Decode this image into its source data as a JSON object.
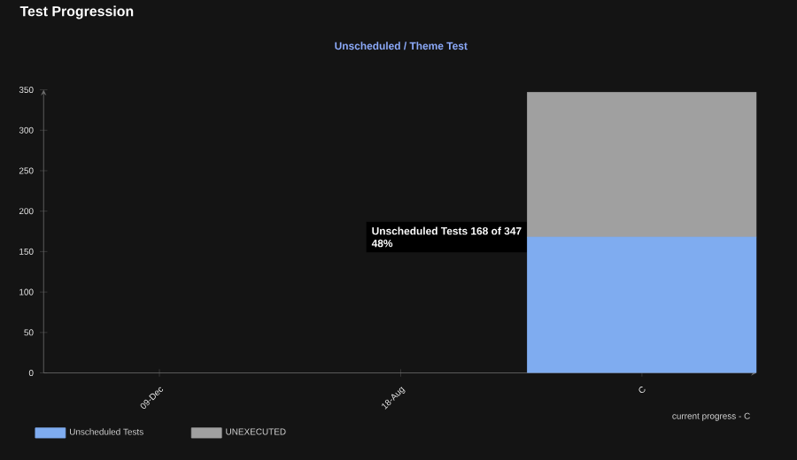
{
  "chart_data": {
    "type": "bar",
    "stacked": true,
    "title": "Test Progression",
    "subtitle": "Unscheduled / Theme Test",
    "categories": [
      "09-Dec",
      "18-Aug",
      "C"
    ],
    "series": [
      {
        "name": "Unscheduled Tests",
        "color": "#7facf0",
        "values": [
          0,
          0,
          168
        ]
      },
      {
        "name": "UNEXECUTED",
        "color": "#a0a0a0",
        "values": [
          0,
          0,
          179
        ]
      }
    ],
    "ylim": [
      0,
      350
    ],
    "yticks": [
      0,
      50,
      100,
      150,
      200,
      250,
      300,
      350
    ],
    "grid": false,
    "legend": "bottom left",
    "annotations": [
      "Unscheduled Tests 168 of 347",
      "48%",
      "current progress - C"
    ]
  }
}
